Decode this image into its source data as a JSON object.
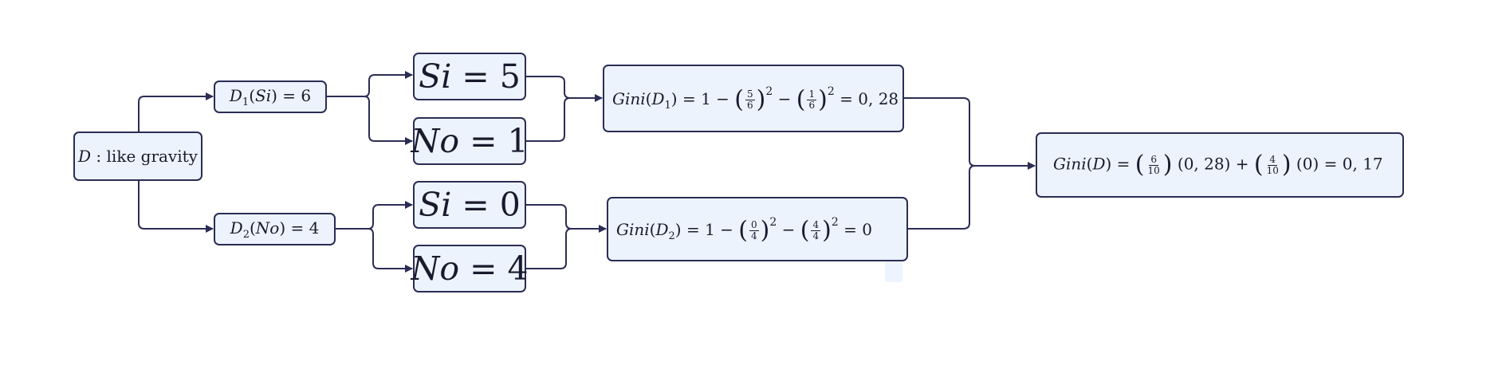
{
  "root": {
    "var": "D",
    "text": " : like gravity"
  },
  "d1": {
    "var": "D",
    "sub": "1",
    "cat": "Si",
    "value": "6"
  },
  "d2": {
    "var": "D",
    "sub": "2",
    "cat": "No",
    "value": "4"
  },
  "leaves": {
    "si5": {
      "label": "Si",
      "value": "5"
    },
    "no1": {
      "label": "No",
      "value": "1"
    },
    "si0": {
      "label": "Si",
      "value": "0"
    },
    "no4": {
      "label": "No",
      "value": "4"
    }
  },
  "gini1": {
    "fn": "Gini",
    "arg": "D",
    "sub": "1",
    "f1": {
      "num": "5",
      "den": "6"
    },
    "f2": {
      "num": "1",
      "den": "6"
    },
    "exp": "2",
    "result": "0, 28"
  },
  "gini2": {
    "fn": "Gini",
    "arg": "D",
    "sub": "2",
    "f1": {
      "num": "0",
      "den": "4"
    },
    "f2": {
      "num": "4",
      "den": "4"
    },
    "exp": "2",
    "result": "0"
  },
  "gini_total": {
    "fn": "Gini",
    "arg": "D",
    "f1": {
      "num": "6",
      "den": "10"
    },
    "v1": "0, 28",
    "f2": {
      "num": "4",
      "den": "10"
    },
    "v2": "0",
    "result": "0, 17"
  },
  "colors": {
    "node_fill": "#ecf3fd",
    "node_border": "#2b2d54",
    "edge": "#2b2d54"
  }
}
